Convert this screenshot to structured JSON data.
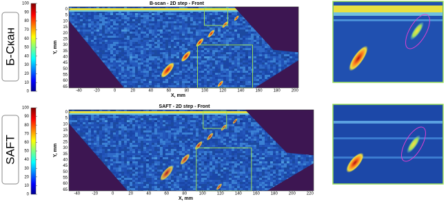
{
  "chart_data": [
    {
      "type": "heatmap",
      "side_label": "Б-Скан",
      "title": "B-scan - 2D step - Front",
      "xlabel": "X, mm",
      "ylabel": "Y, mm",
      "xlim": [
        -51,
        204
      ],
      "xticks": [
        -40,
        -20,
        0,
        20,
        40,
        60,
        80,
        100,
        120,
        140,
        160,
        180,
        200
      ],
      "ylim": [
        -2,
        66
      ],
      "yticks": [
        0,
        5,
        10,
        15,
        20,
        25,
        30,
        35,
        40,
        45,
        50,
        55,
        60,
        65
      ],
      "y_inverted": true,
      "clim": [
        0,
        100
      ],
      "cticks": [
        0,
        10,
        20,
        30,
        40,
        50,
        60,
        70,
        80,
        90,
        100
      ]
    },
    {
      "type": "heatmap",
      "side_label": "SAFT",
      "title": "SAFT - 2D step - Front",
      "xlabel": "X, mm",
      "ylabel": "Y, mm",
      "xlim": [
        -49,
        224
      ],
      "xticks": [
        -40,
        -20,
        0,
        20,
        40,
        60,
        80,
        100,
        120,
        140,
        160,
        180,
        200,
        220
      ],
      "ylim": [
        -2,
        66
      ],
      "yticks": [
        0,
        5,
        10,
        15,
        20,
        25,
        30,
        35,
        40,
        45,
        50,
        55,
        60,
        65
      ],
      "y_inverted": true,
      "clim": [
        0,
        100
      ],
      "cticks": [
        0,
        10,
        20,
        30,
        40,
        50,
        60,
        70,
        80,
        90,
        100
      ]
    }
  ]
}
